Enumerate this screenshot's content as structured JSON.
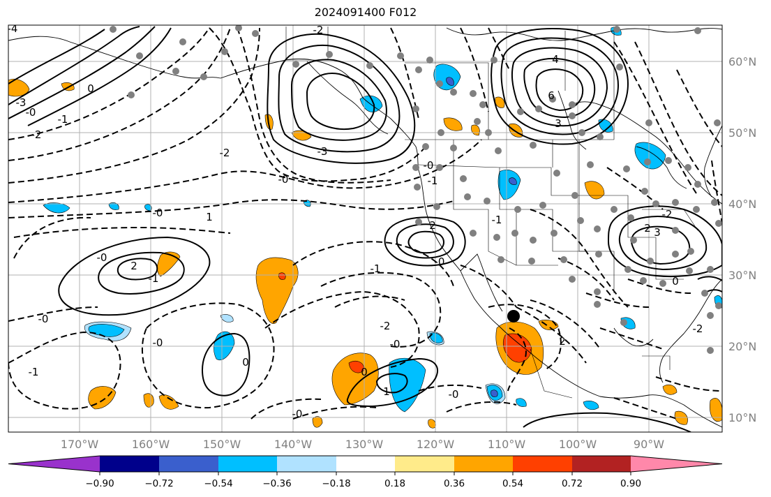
{
  "title": "2024091400 F012",
  "lat_labels": [
    "60°N",
    "50°N",
    "40°N",
    "30°N",
    "20°N",
    "10°N"
  ],
  "lon_labels": [
    "170°W",
    "160°W",
    "150°W",
    "140°W",
    "130°W",
    "120°W",
    "110°W",
    "100°W",
    "90°W"
  ],
  "colorbar": {
    "colors": [
      "#9932cc",
      "#00008b",
      "#3a5fcd",
      "#00bfff",
      "#b0e2ff",
      "#ffffff",
      "#ffeb8a",
      "#ffa500",
      "#ff4000",
      "#b22222",
      "#ff88aa"
    ],
    "tick_labels": [
      "−0.90",
      "−0.72",
      "−0.54",
      "−0.36",
      "−0.18",
      "0.18",
      "0.36",
      "0.54",
      "0.72",
      "0.90"
    ]
  },
  "contour_labels": [
    "-4",
    "-2",
    "-0",
    "0",
    "-1",
    "-2",
    "-3",
    "4",
    "6",
    "3",
    "-3",
    "-0",
    "-1",
    "-0",
    "-2",
    "-0",
    "2",
    "1",
    "-0",
    "-0",
    "2",
    "-1",
    "-0",
    "-1",
    "-2",
    "-0",
    "-0",
    "0",
    "2",
    "-2",
    "-1",
    "0",
    "-0",
    "1",
    "0",
    "2",
    "3",
    "-2",
    "-0",
    "-1"
  ]
}
